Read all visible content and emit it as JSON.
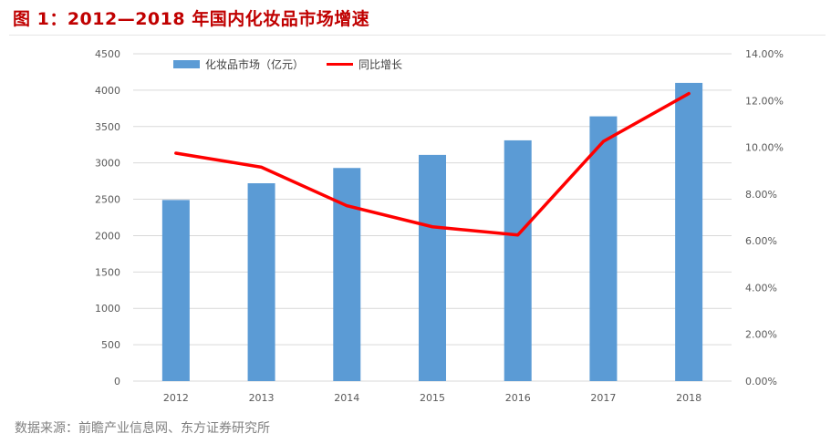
{
  "title": "图 1：2012—2018 年国内化妆品市场增速",
  "source": "数据来源：前瞻产业信息网、东方证券研究所",
  "colors": {
    "title": "#c00000",
    "bar": "#5b9bd5",
    "line": "#ff0000",
    "grid": "#d9d9d9",
    "text": "#595959"
  },
  "chart_data": {
    "type": "bar+line",
    "categories": [
      "2012",
      "2013",
      "2014",
      "2015",
      "2016",
      "2017",
      "2018"
    ],
    "series": [
      {
        "name": "化妆品市场（亿元）",
        "type": "bar",
        "axis": "left",
        "values": [
          2490,
          2720,
          2930,
          3110,
          3310,
          3640,
          4100
        ]
      },
      {
        "name": "同比增长",
        "type": "line",
        "axis": "right",
        "values": [
          9.75,
          9.15,
          7.5,
          6.6,
          6.25,
          10.25,
          12.3
        ]
      }
    ],
    "y_left": {
      "ylim": [
        0,
        4500
      ],
      "ticks": [
        "0",
        "500",
        "1000",
        "1500",
        "2000",
        "2500",
        "3000",
        "3500",
        "4000",
        "4500"
      ]
    },
    "y_right": {
      "ylim": [
        0,
        14
      ],
      "ticks": [
        "0.00%",
        "2.00%",
        "4.00%",
        "6.00%",
        "8.00%",
        "10.00%",
        "12.00%",
        "14.00%"
      ]
    },
    "grid": true,
    "legend_position": "top-left"
  }
}
